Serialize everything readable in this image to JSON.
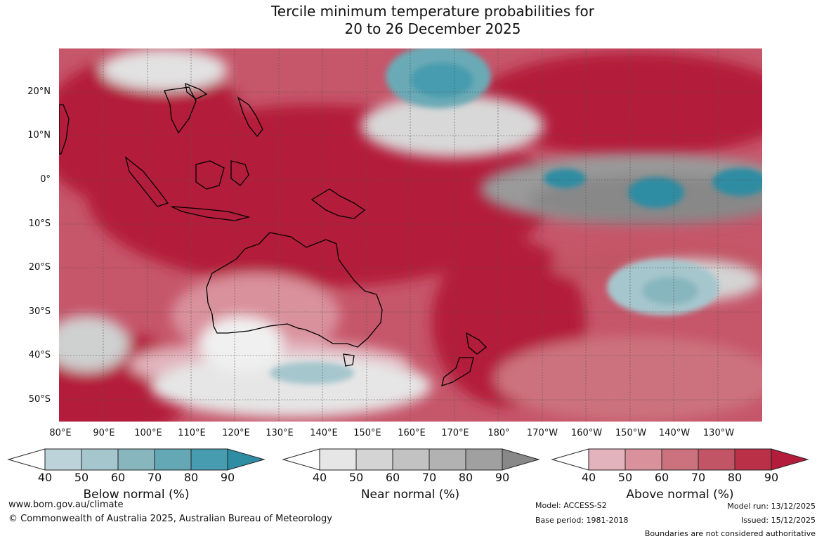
{
  "title": {
    "line1": "Tercile minimum temperature probabilities for",
    "line2": "20 to 26 December 2025"
  },
  "map": {
    "lat_labels": [
      "20°N",
      "10°N",
      "0°",
      "10°S",
      "20°S",
      "30°S",
      "40°S",
      "50°S"
    ],
    "lon_labels": [
      "80°E",
      "90°E",
      "100°E",
      "110°E",
      "120°E",
      "130°E",
      "140°E",
      "150°E",
      "160°E",
      "170°E",
      "180°",
      "170°W",
      "160°W",
      "150°W",
      "140°W",
      "130°W"
    ]
  },
  "legends": [
    {
      "title": "Below normal (%)",
      "ticks": [
        "40",
        "50",
        "60",
        "70",
        "80",
        "90"
      ],
      "colors": [
        "#ffffff",
        "#bdd3da",
        "#a6c6cd",
        "#88b6be",
        "#65a8b5",
        "#479caf",
        "#2e8ca3"
      ]
    },
    {
      "title": "Near normal (%)",
      "ticks": [
        "40",
        "50",
        "60",
        "70",
        "80",
        "90"
      ],
      "colors": [
        "#ffffff",
        "#e6e6e6",
        "#d4d4d4",
        "#c2c2c2",
        "#b2b2b2",
        "#a0a0a0",
        "#888888"
      ]
    },
    {
      "title": "Above normal (%)",
      "ticks": [
        "40",
        "50",
        "60",
        "70",
        "80",
        "90"
      ],
      "colors": [
        "#ffffff",
        "#e2b3bc",
        "#d9919c",
        "#cc727e",
        "#c25565",
        "#b93047",
        "#b41c3b"
      ]
    }
  ],
  "footer": {
    "website": "www.bom.gov.au/climate",
    "copyright": "© Commonwealth of Australia 2025, Australian Bureau of Meteorology",
    "model": "Model: ACCESS-S2",
    "base_period": "Base period: 1981-2018",
    "model_run": "Model run: 13/12/2025",
    "issued": "Issued: 15/12/2025",
    "disclaimer": "Boundaries are not considered authoritative"
  }
}
